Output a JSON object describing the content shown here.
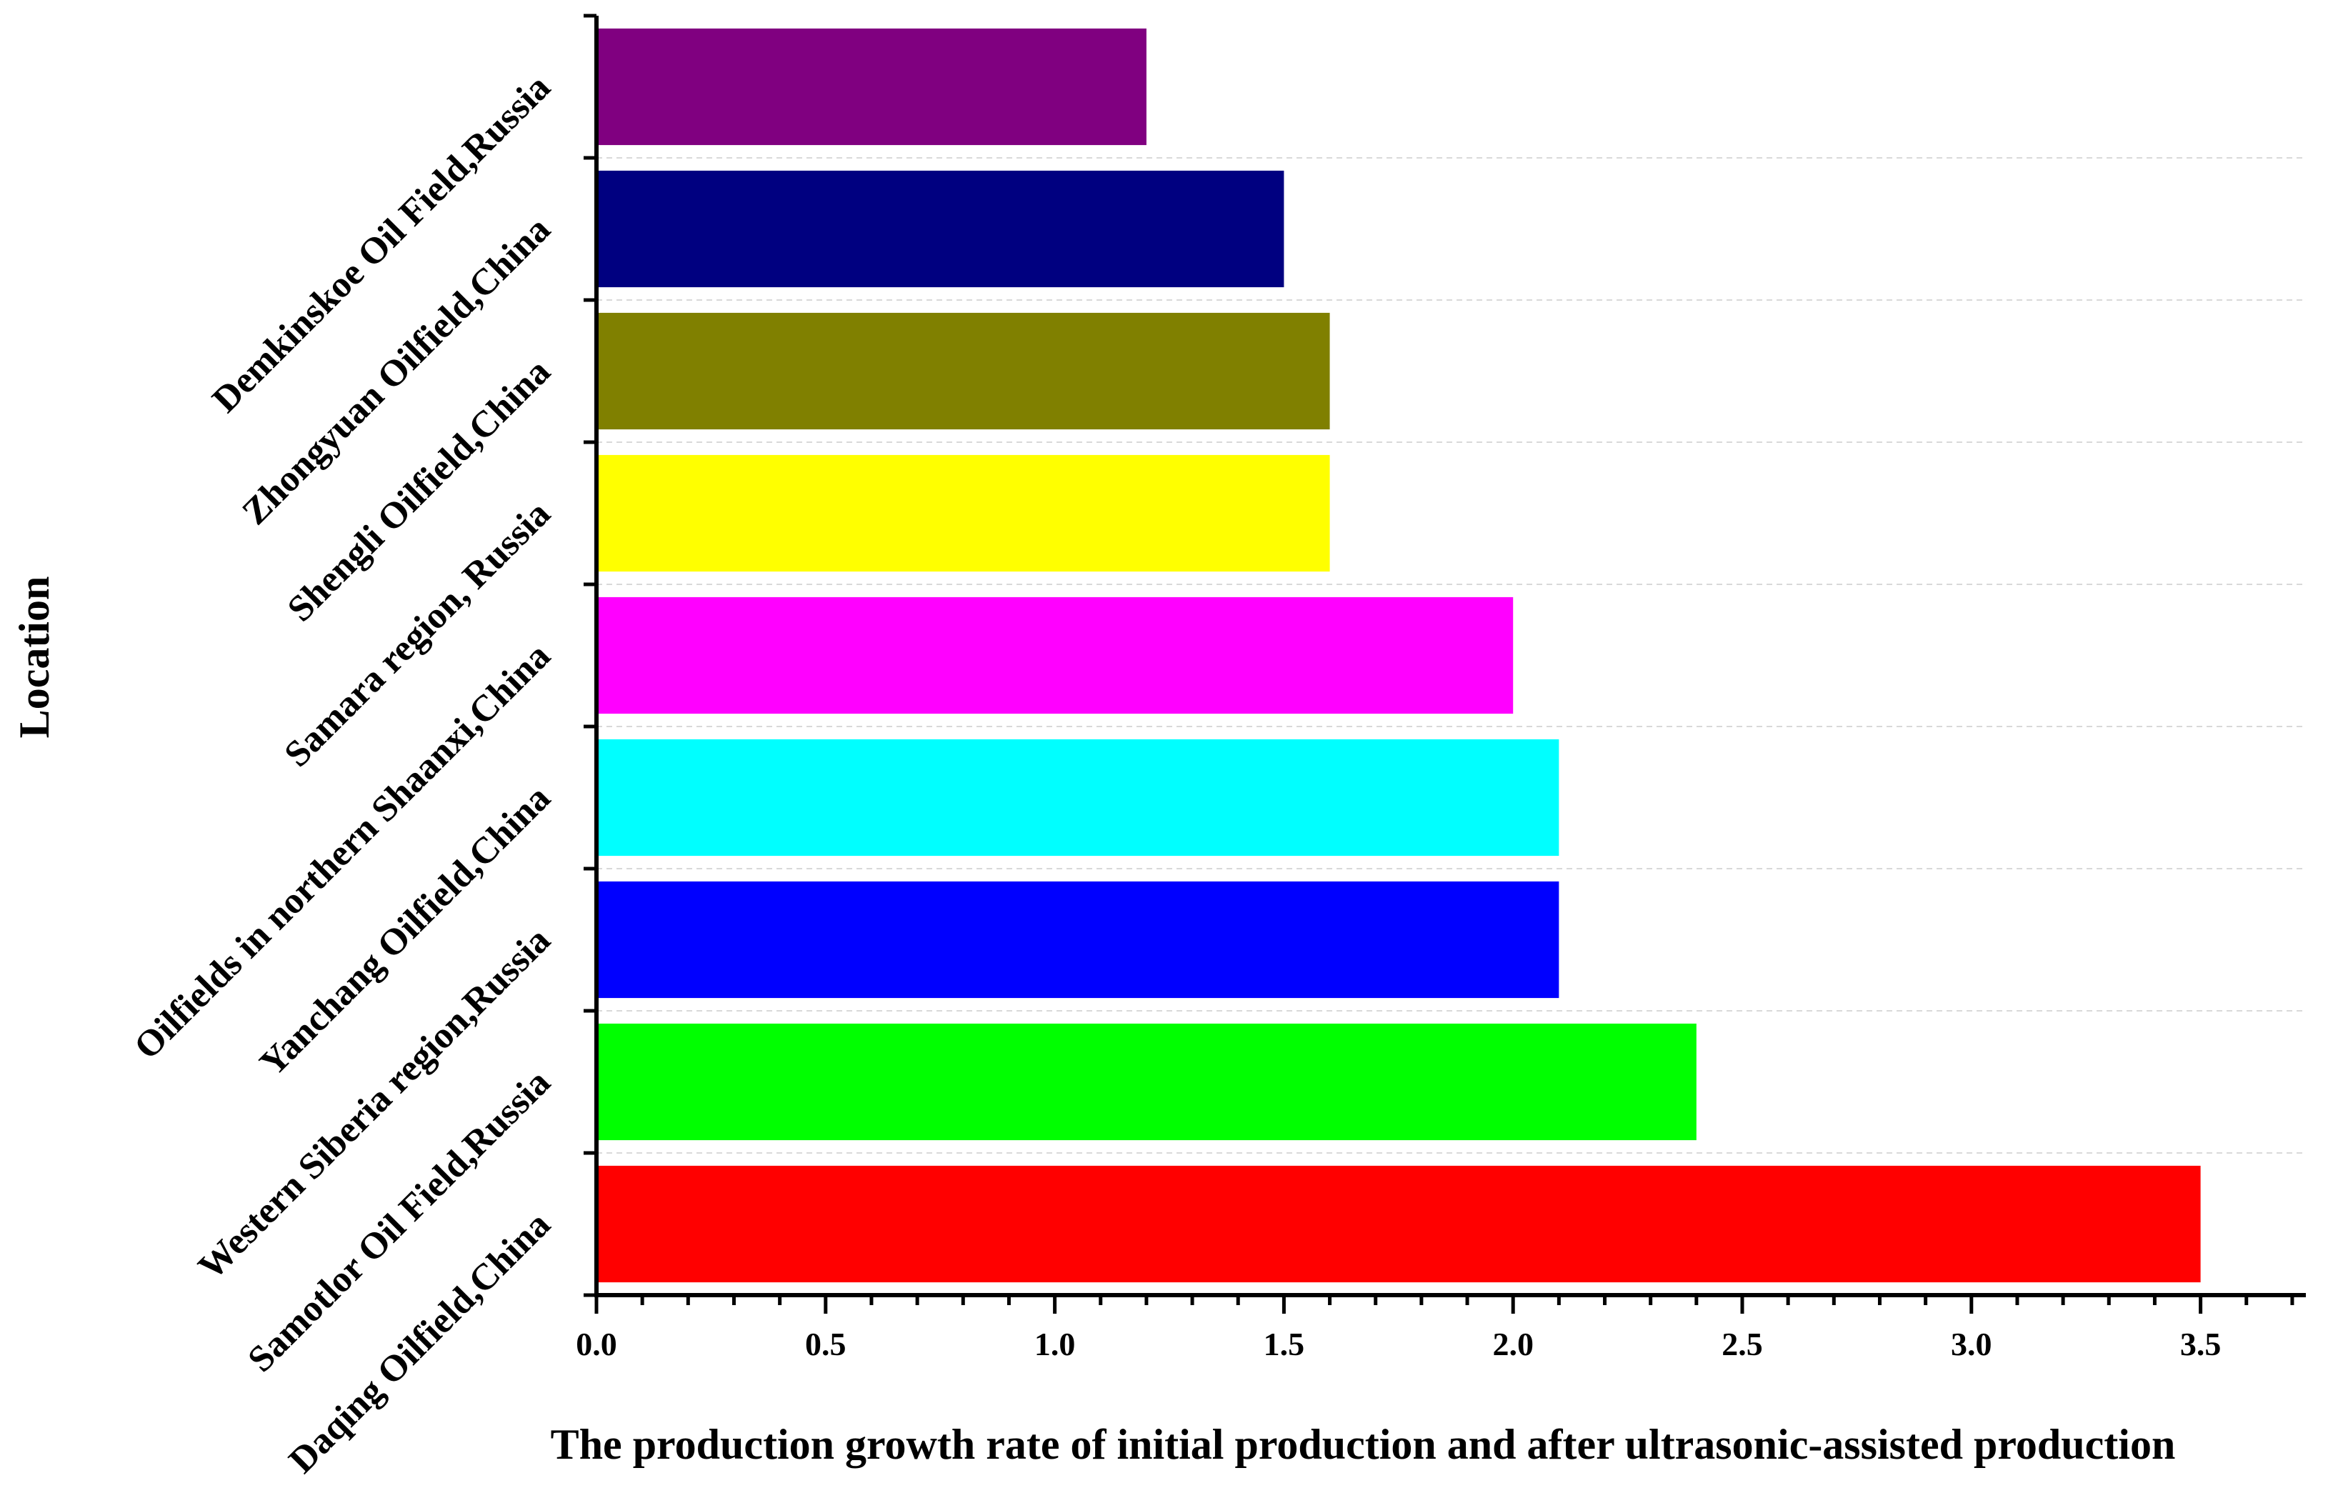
{
  "chart_data": {
    "type": "bar",
    "orientation": "horizontal",
    "title": "",
    "xlabel": "The production growth rate of  initial production and after ultrasonic-assisted production",
    "ylabel": "Location",
    "xlim": [
      0,
      3.8
    ],
    "xticks": [
      0.0,
      0.5,
      1.0,
      1.5,
      2.0,
      2.5,
      3.0,
      3.5
    ],
    "xtick_labels": [
      "0.0",
      "0.5",
      "1.0",
      "1.5",
      "2.0",
      "2.5",
      "3.0",
      "3.5"
    ],
    "grid": "horizontal dashed",
    "categories": [
      "Daqing Oilfield,China",
      "Samotlor Oil Field,Russia",
      "Western Siberia region,Russia",
      "Yanchang Oilfield,China",
      "Oilfields in northern Shaanxi,China",
      "Samara region, Russia",
      "Shengli Oilfield,China",
      "Zhongyuan Oilfield,China",
      "Demkinskoe Oil Field,Russia"
    ],
    "values": [
      3.5,
      2.4,
      2.1,
      2.1,
      2.0,
      1.6,
      1.6,
      1.5,
      1.2
    ],
    "colors": [
      "#ff0000",
      "#00ff00",
      "#0000ff",
      "#00ffff",
      "#ff00ff",
      "#ffff00",
      "#808000",
      "#000080",
      "#800080"
    ]
  }
}
